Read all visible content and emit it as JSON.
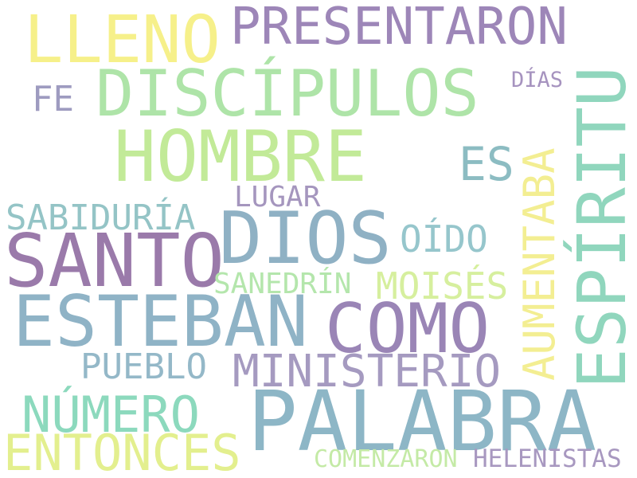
{
  "words": [
    {
      "id": "presentaron",
      "text": "PRESENTARON",
      "color": "#9d86b8"
    },
    {
      "id": "lleno",
      "text": "LLENO",
      "color": "#f6f08a"
    },
    {
      "id": "discipulos",
      "text": "DISCÍPULOS",
      "color": "#aee4a8"
    },
    {
      "id": "espiritu",
      "text": "ESPÍRITU",
      "color": "#90d6bd"
    },
    {
      "id": "dias",
      "text": "DÍAS",
      "color": "#a693bf"
    },
    {
      "id": "fe",
      "text": "FE",
      "color": "#9e9bc0"
    },
    {
      "id": "hombre",
      "text": "HOMBRE",
      "color": "#c2ea98"
    },
    {
      "id": "es",
      "text": "ES",
      "color": "#8cbcc2"
    },
    {
      "id": "aumentaba",
      "text": "AUMENTABA",
      "color": "#f3ee92"
    },
    {
      "id": "lugar",
      "text": "LUGAR",
      "color": "#a596be"
    },
    {
      "id": "sabiduria",
      "text": "SABIDURÍA",
      "color": "#94c4c6"
    },
    {
      "id": "santo",
      "text": "SANTO",
      "color": "#9a7aaa"
    },
    {
      "id": "dios",
      "text": "DIOS",
      "color": "#8fb1c4"
    },
    {
      "id": "oido",
      "text": "OÍDO",
      "color": "#96c6cc"
    },
    {
      "id": "sanedrin",
      "text": "SANEDRÍN",
      "color": "#b4e6ac"
    },
    {
      "id": "moises",
      "text": "MOISÉS",
      "color": "#d6ef9e"
    },
    {
      "id": "esteban",
      "text": "ESTEBAN",
      "color": "#8fb3c6"
    },
    {
      "id": "como",
      "text": "COMO",
      "color": "#9a85b6"
    },
    {
      "id": "pueblo",
      "text": "PUEBLO",
      "color": "#94b8c8"
    },
    {
      "id": "ministerio",
      "text": "MINISTERIO",
      "color": "#a59ac0"
    },
    {
      "id": "numero",
      "text": "NÚMERO",
      "color": "#8cd9bd"
    },
    {
      "id": "palabra",
      "text": "PALABRA",
      "color": "#8db6c6"
    },
    {
      "id": "entonces",
      "text": "ENTONCES",
      "color": "#e3ef8e"
    },
    {
      "id": "comenzaron",
      "text": "COMENZARON",
      "color": "#c4eaa6"
    },
    {
      "id": "helenistas",
      "text": "HELENISTAS",
      "color": "#a898c0"
    }
  ]
}
